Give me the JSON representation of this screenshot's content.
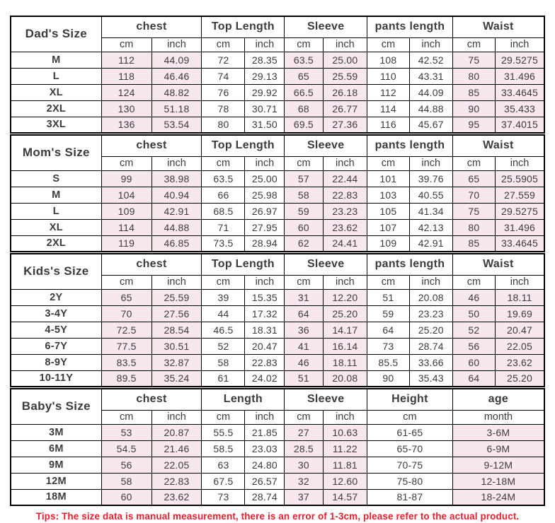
{
  "page": {
    "tips": "Tips: The size data is manual measurement, there is an error of 1-3cm, please refer to the actual product."
  },
  "colors": {
    "shaded_cell": "#f7e8ef",
    "border": "#000000",
    "header_text": "#141414",
    "value_text": "#3c3c3c",
    "tips_red": "#e02330",
    "background": "#ffffff"
  },
  "chart_data": [
    {
      "type": "table",
      "title": "Dad's Size",
      "column_groups": [
        {
          "label": "chest",
          "units": [
            "cm",
            "inch"
          ],
          "span": 2,
          "shaded": true
        },
        {
          "label": "Top Length",
          "units": [
            "cm",
            "inch"
          ],
          "span": 2,
          "shaded": false
        },
        {
          "label": "Sleeve",
          "units": [
            "cm",
            "inch"
          ],
          "span": 2,
          "shaded": true
        },
        {
          "label": "pants length",
          "units": [
            "cm",
            "inch"
          ],
          "span": 2,
          "shaded": false
        },
        {
          "label": "Waist",
          "units": [
            "cm",
            "inch"
          ],
          "span": 2,
          "shaded": true
        }
      ],
      "rows": [
        {
          "size": "M",
          "values": [
            "112",
            "44.09",
            "72",
            "28.35",
            "63.5",
            "25.00",
            "108",
            "42.52",
            "75",
            "29.5275"
          ]
        },
        {
          "size": "L",
          "values": [
            "118",
            "46.46",
            "74",
            "29.13",
            "65",
            "25.59",
            "110",
            "43.31",
            "80",
            "31.496"
          ]
        },
        {
          "size": "XL",
          "values": [
            "124",
            "48.82",
            "76",
            "29.92",
            "66.5",
            "26.18",
            "112",
            "44.09",
            "85",
            "33.4645"
          ]
        },
        {
          "size": "2XL",
          "values": [
            "130",
            "51.18",
            "78",
            "30.71",
            "68",
            "26.77",
            "114",
            "44.88",
            "90",
            "35.433"
          ]
        },
        {
          "size": "3XL",
          "values": [
            "136",
            "53.54",
            "80",
            "31.50",
            "69.5",
            "27.36",
            "116",
            "45.67",
            "95",
            "37.4015"
          ]
        }
      ]
    },
    {
      "type": "table",
      "title": "Mom's Size",
      "column_groups": [
        {
          "label": "chest",
          "units": [
            "cm",
            "inch"
          ],
          "span": 2,
          "shaded": true
        },
        {
          "label": "Top Length",
          "units": [
            "cm",
            "inch"
          ],
          "span": 2,
          "shaded": false
        },
        {
          "label": "Sleeve",
          "units": [
            "cm",
            "inch"
          ],
          "span": 2,
          "shaded": true
        },
        {
          "label": "pants length",
          "units": [
            "cm",
            "inch"
          ],
          "span": 2,
          "shaded": false
        },
        {
          "label": "Waist",
          "units": [
            "cm",
            "inch"
          ],
          "span": 2,
          "shaded": true
        }
      ],
      "rows": [
        {
          "size": "S",
          "values": [
            "99",
            "38.98",
            "63.5",
            "25.00",
            "57",
            "22.44",
            "101",
            "39.76",
            "65",
            "25.5905"
          ]
        },
        {
          "size": "M",
          "values": [
            "104",
            "40.94",
            "66",
            "25.98",
            "58",
            "22.83",
            "103",
            "40.55",
            "70",
            "27.559"
          ]
        },
        {
          "size": "L",
          "values": [
            "109",
            "42.91",
            "68.5",
            "26.97",
            "59",
            "23.23",
            "105",
            "41.34",
            "75",
            "29.5275"
          ]
        },
        {
          "size": "XL",
          "values": [
            "114",
            "44.88",
            "71",
            "27.95",
            "60",
            "23.62",
            "107",
            "42.13",
            "80",
            "31.496"
          ]
        },
        {
          "size": "2XL",
          "values": [
            "119",
            "46.85",
            "73.5",
            "28.94",
            "62",
            "24.41",
            "109",
            "42.91",
            "85",
            "33.4645"
          ]
        }
      ]
    },
    {
      "type": "table",
      "title": "Kids's Size",
      "column_groups": [
        {
          "label": "chest",
          "units": [
            "cm",
            "inch"
          ],
          "span": 2,
          "shaded": true
        },
        {
          "label": "Top Length",
          "units": [
            "cm",
            "inch"
          ],
          "span": 2,
          "shaded": false
        },
        {
          "label": "Sleeve",
          "units": [
            "cm",
            "inch"
          ],
          "span": 2,
          "shaded": true
        },
        {
          "label": "pants length",
          "units": [
            "cm",
            "inch"
          ],
          "span": 2,
          "shaded": false
        },
        {
          "label": "Waist",
          "units": [
            "cm",
            "inch"
          ],
          "span": 2,
          "shaded": true
        }
      ],
      "rows": [
        {
          "size": "2Y",
          "values": [
            "65",
            "25.59",
            "39",
            "15.35",
            "31",
            "12.20",
            "51",
            "20.08",
            "46",
            "18.11"
          ]
        },
        {
          "size": "3-4Y",
          "values": [
            "70",
            "27.56",
            "44",
            "17.32",
            "64",
            "25.20",
            "59",
            "23.23",
            "50",
            "19.69"
          ]
        },
        {
          "size": "4-5Y",
          "values": [
            "72.5",
            "28.54",
            "46.5",
            "18.31",
            "36",
            "14.17",
            "64",
            "25.20",
            "52",
            "20.47"
          ]
        },
        {
          "size": "6-7Y",
          "values": [
            "77.5",
            "30.51",
            "52",
            "20.47",
            "41",
            "16.14",
            "73",
            "28.74",
            "56",
            "22.05"
          ]
        },
        {
          "size": "8-9Y",
          "values": [
            "83.5",
            "32.87",
            "58",
            "22.83",
            "46",
            "18.11",
            "85.5",
            "33.66",
            "60",
            "23.62"
          ]
        },
        {
          "size": "10-11Y",
          "values": [
            "89.5",
            "35.24",
            "61",
            "24.02",
            "51",
            "20.08",
            "90",
            "35.43",
            "64",
            "25.20"
          ]
        }
      ]
    },
    {
      "type": "table",
      "title": "Baby's Size",
      "column_groups": [
        {
          "label": "chest",
          "units": [
            "cm",
            "inch"
          ],
          "span": 2,
          "shaded": true
        },
        {
          "label": "Length",
          "units": [
            "cm",
            "inch"
          ],
          "span": 2,
          "shaded": false
        },
        {
          "label": "Sleeve",
          "units": [
            "cm",
            "inch"
          ],
          "span": 2,
          "shaded": true
        },
        {
          "label": "Height",
          "units": [
            "cm"
          ],
          "span": 2,
          "shaded": false
        },
        {
          "label": "age",
          "units": [
            "month"
          ],
          "span": 2,
          "shaded": true
        }
      ],
      "rows": [
        {
          "size": "3M",
          "values": [
            "53",
            "20.87",
            "55.5",
            "21.85",
            "27",
            "10.63",
            "61-65",
            "3-6M"
          ]
        },
        {
          "size": "6M",
          "values": [
            "54.5",
            "21.46",
            "58.5",
            "23.03",
            "28.5",
            "11.22",
            "65-70",
            "6-9M"
          ]
        },
        {
          "size": "9M",
          "values": [
            "56",
            "22.05",
            "63",
            "24.80",
            "30",
            "11.81",
            "70-75",
            "9-12M"
          ]
        },
        {
          "size": "12M",
          "values": [
            "58",
            "22.83",
            "67.5",
            "26.57",
            "32",
            "12.60",
            "75-80",
            "12-18M"
          ]
        },
        {
          "size": "18M",
          "values": [
            "60",
            "23.62",
            "73",
            "28.74",
            "37",
            "14.57",
            "81-87",
            "18-24M"
          ]
        }
      ]
    }
  ]
}
